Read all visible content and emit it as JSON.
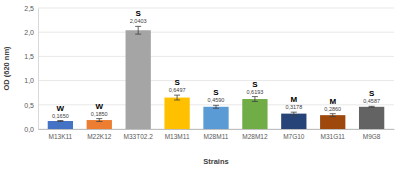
{
  "chart_data": {
    "type": "bar",
    "x_label": "Strains",
    "y_label": "OD (620 nm)",
    "categories": [
      "M13K11",
      "M22K12",
      "M33T02.2",
      "M13M11",
      "M28M11",
      "M28M12",
      "M7G10",
      "M31G11",
      "M9G8"
    ],
    "values": [
      0.165,
      0.185,
      2.0403,
      0.6497,
      0.459,
      0.6193,
      0.3178,
      0.286,
      0.4587
    ],
    "value_labels": [
      "0,1650",
      "0,1850",
      "2,0403",
      "0,6497",
      "0,4590",
      "0,6193",
      "0,3178",
      "0,2860",
      "0,4587"
    ],
    "errors": [
      0.01,
      0.03,
      0.08,
      0.05,
      0.03,
      0.05,
      0.03,
      0.03,
      0.01
    ],
    "annotations": [
      "W",
      "W",
      "S",
      "S",
      "S",
      "S",
      "M",
      "M",
      "S"
    ],
    "colors": [
      "#4472c4",
      "#ed7d31",
      "#a5a5a5",
      "#ffc000",
      "#5b9bd5",
      "#70ad47",
      "#264478",
      "#9e480e",
      "#636363"
    ],
    "ylim": [
      0,
      2.5
    ],
    "yticks": [
      {
        "value": 0,
        "label": "0,0"
      },
      {
        "value": 0.5,
        "label": "0,5"
      },
      {
        "value": 1,
        "label": "1,0"
      },
      {
        "value": 1.5,
        "label": "1,5"
      },
      {
        "value": 2,
        "label": "2,0"
      },
      {
        "value": 2.5,
        "label": "2,5"
      }
    ],
    "grid": true,
    "data_labels": true
  }
}
